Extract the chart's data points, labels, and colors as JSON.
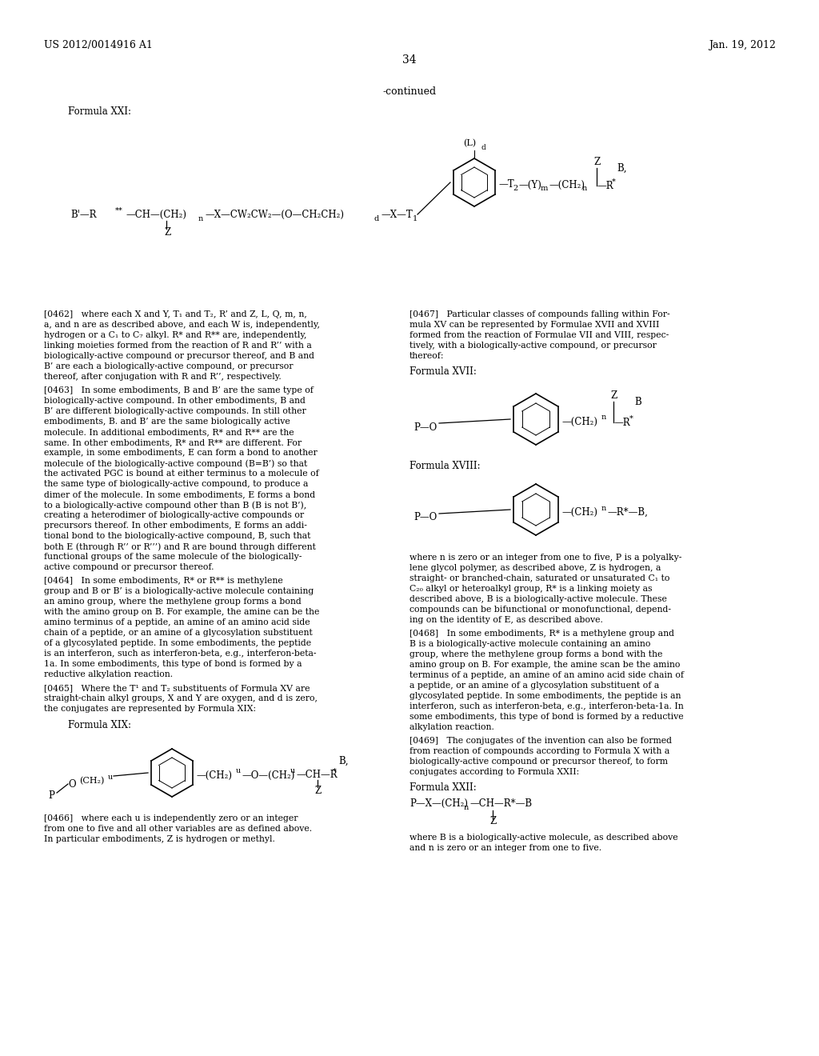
{
  "background_color": "#ffffff",
  "header_left": "US 2012/0014916 A1",
  "header_right": "Jan. 19, 2012",
  "page_number": "34",
  "continued_text": "-continued",
  "formula_xxi_label": "Formula XXI:",
  "formula_xvii_label": "Formula XVII:",
  "formula_xviii_label": "Formula XVIII:",
  "formula_xix_label": "Formula XIX:",
  "formula_xxii_label": "Formula XXII:"
}
